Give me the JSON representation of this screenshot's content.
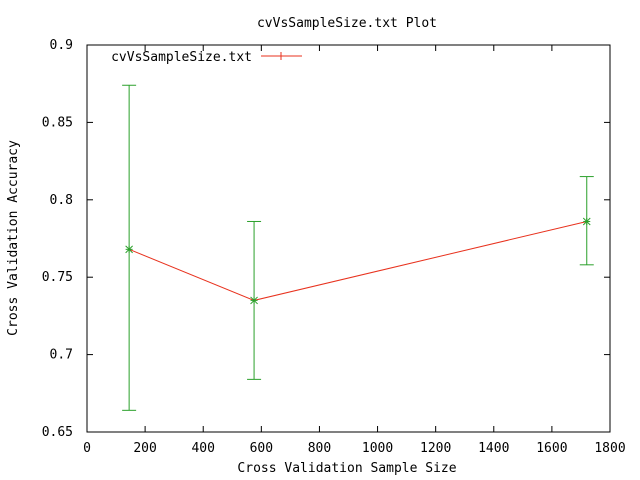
{
  "chart_data": {
    "type": "line",
    "title": "cvVsSampleSize.txt Plot",
    "xlabel": "Cross Validation Sample Size",
    "ylabel": "Cross Validation Accuracy",
    "xlim": [
      0,
      1800
    ],
    "ylim": [
      0.65,
      0.9
    ],
    "xticks": [
      "0",
      "200",
      "400",
      "600",
      "800",
      "1000",
      "1200",
      "1400",
      "1600",
      "1800"
    ],
    "yticks": [
      "0.65",
      "0.7",
      "0.75",
      "0.8",
      "0.85",
      "0.9"
    ],
    "grid": false,
    "legend_position": "top-left",
    "series": [
      {
        "name": "cvVsSampleSize.txt",
        "line_color": "#e8321e",
        "errorbar_color": "#2aa02a",
        "x": [
          145,
          575,
          1720
        ],
        "y": [
          0.768,
          0.735,
          0.786
        ],
        "err_low": [
          0.664,
          0.684,
          0.758
        ],
        "err_high": [
          0.874,
          0.786,
          0.815
        ]
      }
    ]
  }
}
